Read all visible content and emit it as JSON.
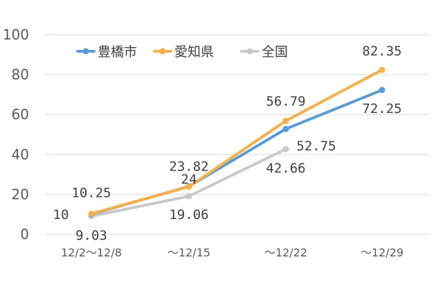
{
  "chart_data": {
    "type": "line",
    "categories": [
      "12/2～12/8",
      "～12/15",
      "～12/22",
      "～12/29"
    ],
    "ylim": [
      0,
      100
    ],
    "yticks": [
      "0",
      "20",
      "40",
      "60",
      "80",
      "100"
    ],
    "grid": true,
    "legend_position": "top",
    "series": [
      {
        "name": "豊橋市",
        "color": "#5b9bd5",
        "values": [
          10,
          24,
          52.75,
          72.25
        ],
        "labels": [
          "10",
          "24",
          "52.75",
          "72.25"
        ]
      },
      {
        "name": "愛知県",
        "color": "#f4b04a",
        "values": [
          10.25,
          23.82,
          56.79,
          82.35
        ],
        "labels": [
          "10.25",
          "23.82",
          "56.79",
          "82.35"
        ]
      },
      {
        "name": "全国",
        "color": "#c9c9c9",
        "values": [
          9.03,
          19.06,
          42.66,
          null
        ],
        "labels": [
          "9.03",
          "19.06",
          "42.66",
          null
        ]
      }
    ]
  }
}
